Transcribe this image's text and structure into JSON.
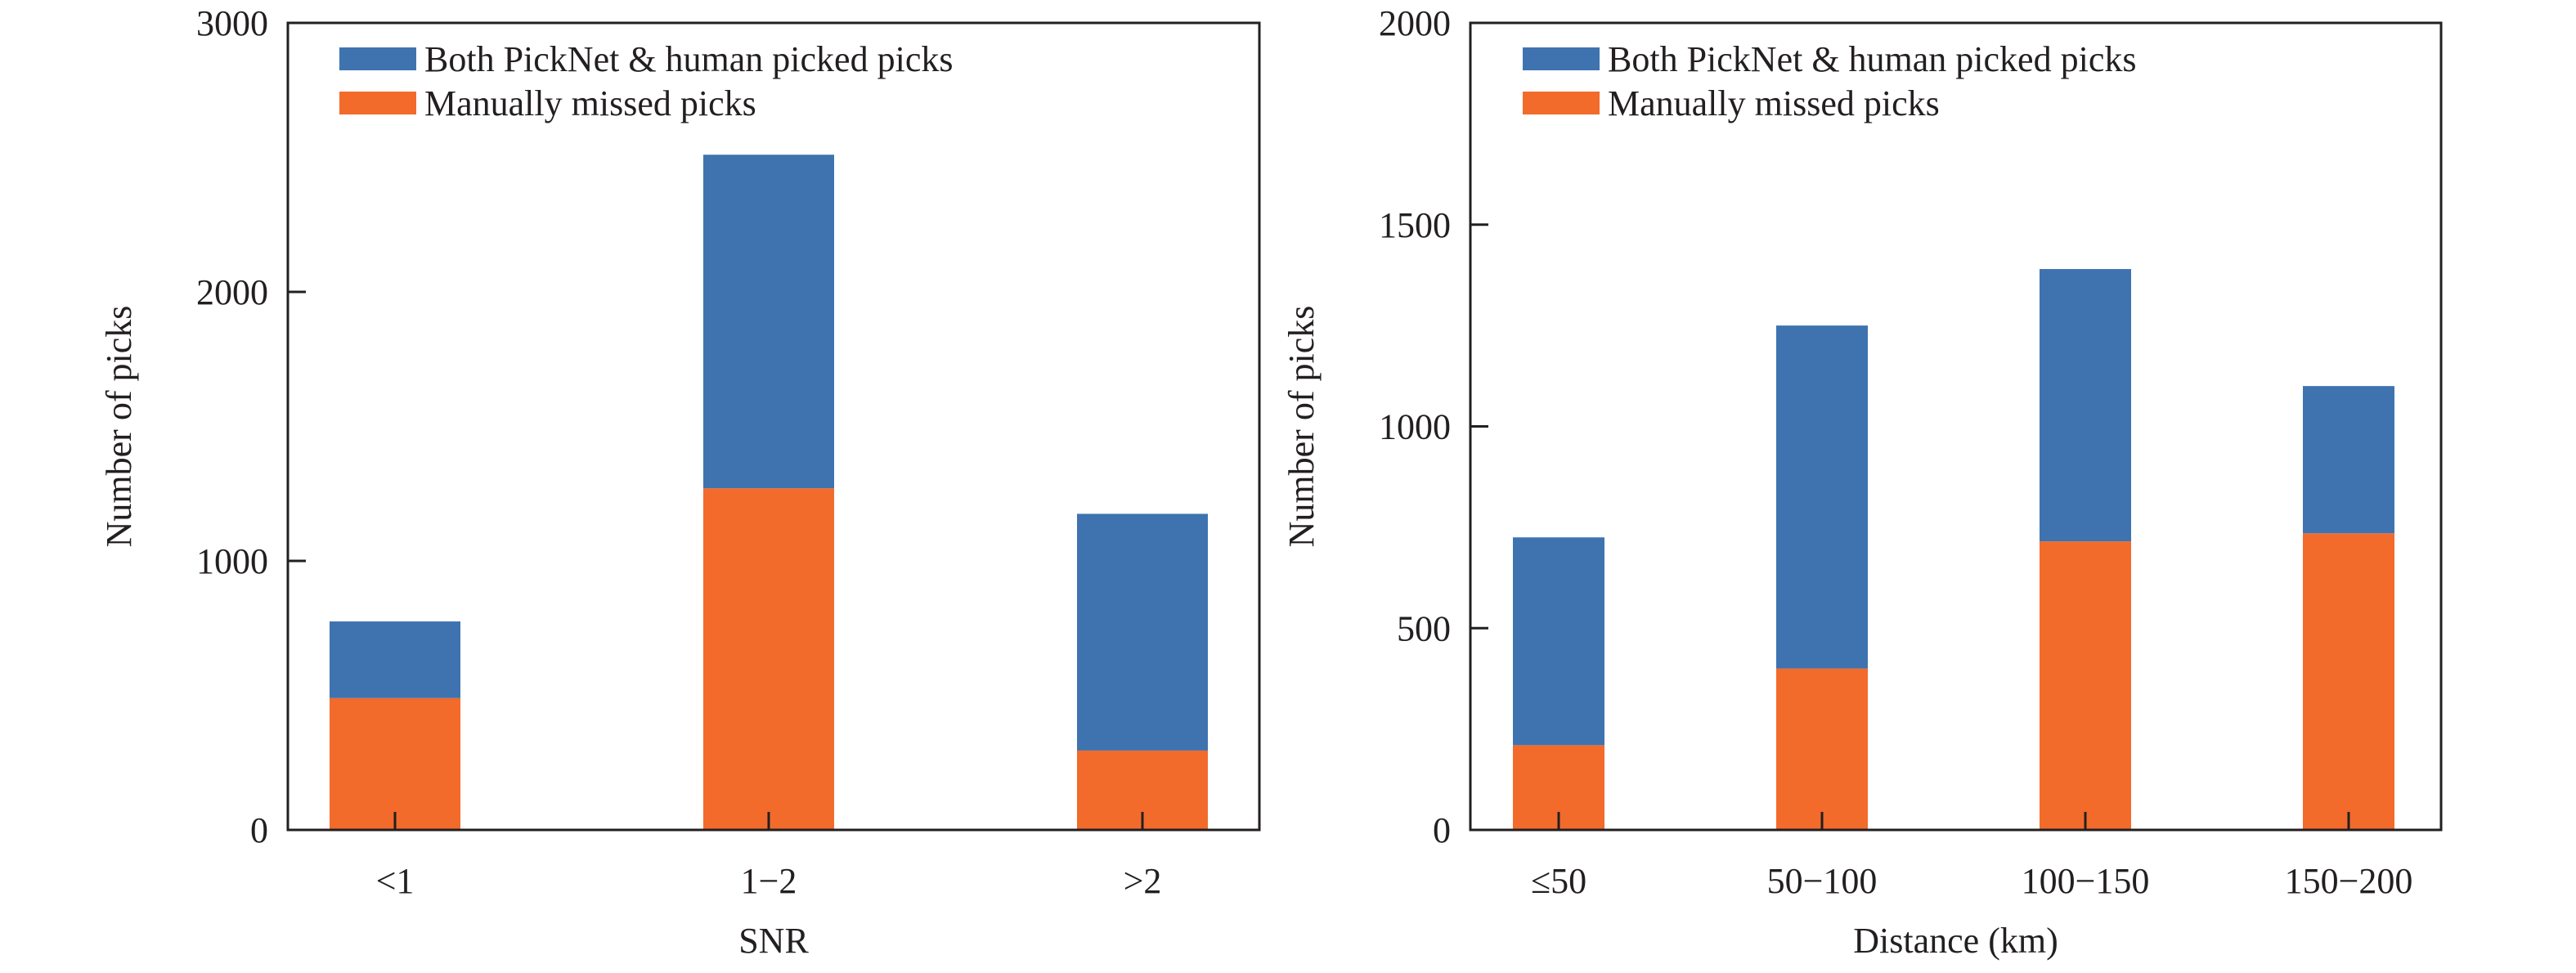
{
  "colors": {
    "blue": "#3f73b0",
    "orange": "#f26b2b",
    "axis": "#231f20"
  },
  "chart_data": [
    {
      "type": "bar",
      "stacked": true,
      "categories": [
        "<1",
        "1−2",
        ">2"
      ],
      "series": [
        {
          "name": "Manually missed picks",
          "color": "#f26b2b",
          "values": [
            490,
            1270,
            295
          ]
        },
        {
          "name": "Both PickNet & human picked picks",
          "color": "#3f73b0",
          "values": [
            285,
            1240,
            880
          ]
        }
      ],
      "legend": [
        "Both PickNet & human picked picks",
        "Manually missed picks"
      ],
      "legend_placement": "top-left",
      "xlabel": "SNR",
      "ylabel": "Number of picks",
      "ylim": [
        0,
        3000
      ],
      "yticks": [
        "0",
        "1000",
        "2000",
        "3000"
      ],
      "grid": false
    },
    {
      "type": "bar",
      "stacked": true,
      "categories": [
        "≤50",
        "50−100",
        "100−150",
        "150−200"
      ],
      "series": [
        {
          "name": "Manually missed picks",
          "color": "#f26b2b",
          "values": [
            210,
            400,
            715,
            735
          ]
        },
        {
          "name": "Both PickNet & human picked picks",
          "color": "#3f73b0",
          "values": [
            515,
            850,
            675,
            365
          ]
        }
      ],
      "legend": [
        "Both PickNet & human picked picks",
        "Manually missed picks"
      ],
      "legend_placement": "top-left",
      "xlabel": "Distance (km)",
      "ylabel": "Number of picks",
      "ylim": [
        0,
        2000
      ],
      "yticks": [
        "0",
        "500",
        "1000",
        "1500",
        "2000"
      ],
      "grid": false
    }
  ]
}
